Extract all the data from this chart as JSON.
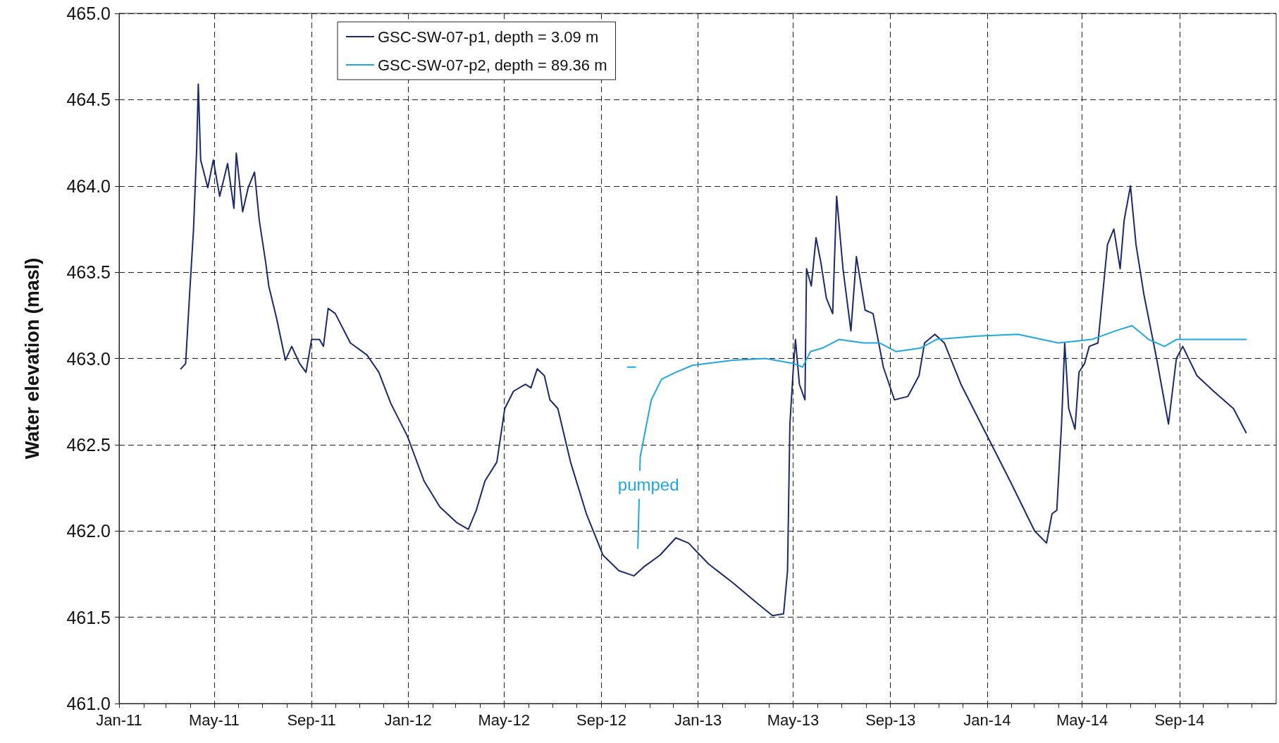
{
  "chart_data": {
    "type": "line",
    "ylabel": "Water elevation (masl)",
    "xlim": [
      "2011-01-01",
      "2015-01-01"
    ],
    "ylim": [
      461,
      465
    ],
    "yticks": [
      {
        "value": 461,
        "label": "461.0"
      },
      {
        "value": 461.5,
        "label": "461.5"
      },
      {
        "value": 462,
        "label": "462.0"
      },
      {
        "value": 462.5,
        "label": "462.5"
      },
      {
        "value": 463,
        "label": "463.0"
      },
      {
        "value": 463.5,
        "label": "463.5"
      },
      {
        "value": 464,
        "label": "464.0"
      },
      {
        "value": 464.5,
        "label": "464.5"
      },
      {
        "value": 465,
        "label": "465.0"
      }
    ],
    "xticks": [
      {
        "value": "2011-01",
        "label": "Jan-11"
      },
      {
        "value": "2011-02",
        "label": null
      },
      {
        "value": "2011-03",
        "label": null
      },
      {
        "value": "2011-04",
        "label": null
      },
      {
        "value": "2011-05",
        "label": "May-11"
      },
      {
        "value": "2011-06",
        "label": null
      },
      {
        "value": "2011-07",
        "label": null
      },
      {
        "value": "2011-08",
        "label": null
      },
      {
        "value": "2011-09",
        "label": "Sep-11"
      },
      {
        "value": "2011-10",
        "label": null
      },
      {
        "value": "2011-11",
        "label": null
      },
      {
        "value": "2011-12",
        "label": null
      },
      {
        "value": "2012-01",
        "label": "Jan-12"
      },
      {
        "value": "2012-02",
        "label": null
      },
      {
        "value": "2012-03",
        "label": null
      },
      {
        "value": "2012-04",
        "label": null
      },
      {
        "value": "2012-05",
        "label": "May-12"
      },
      {
        "value": "2012-06",
        "label": null
      },
      {
        "value": "2012-07",
        "label": null
      },
      {
        "value": "2012-08",
        "label": null
      },
      {
        "value": "2012-09",
        "label": "Sep-12"
      },
      {
        "value": "2012-10",
        "label": null
      },
      {
        "value": "2012-11",
        "label": null
      },
      {
        "value": "2012-12",
        "label": null
      },
      {
        "value": "2013-01",
        "label": "Jan-13"
      },
      {
        "value": "2013-02",
        "label": null
      },
      {
        "value": "2013-03",
        "label": null
      },
      {
        "value": "2013-04",
        "label": null
      },
      {
        "value": "2013-05",
        "label": "May-13"
      },
      {
        "value": "2013-06",
        "label": null
      },
      {
        "value": "2013-07",
        "label": null
      },
      {
        "value": "2013-08",
        "label": null
      },
      {
        "value": "2013-09",
        "label": "Sep-13"
      },
      {
        "value": "2013-10",
        "label": null
      },
      {
        "value": "2013-11",
        "label": null
      },
      {
        "value": "2013-12",
        "label": null
      },
      {
        "value": "2014-01",
        "label": "Jan-14"
      },
      {
        "value": "2014-02",
        "label": null
      },
      {
        "value": "2014-03",
        "label": null
      },
      {
        "value": "2014-04",
        "label": null
      },
      {
        "value": "2014-05",
        "label": "May-14"
      },
      {
        "value": "2014-06",
        "label": null
      },
      {
        "value": "2014-07",
        "label": null
      },
      {
        "value": "2014-08",
        "label": null
      },
      {
        "value": "2014-09",
        "label": "Sep-14"
      },
      {
        "value": "2014-10",
        "label": null
      },
      {
        "value": "2014-11",
        "label": null
      },
      {
        "value": "2014-12",
        "label": null
      }
    ],
    "grid": true,
    "legend": "top left",
    "marker": "none",
    "line_style": "solid",
    "annotations": [
      "pumped"
    ],
    "series": [
      {
        "name": "GSC-SW-07-p1, depth = 3.09 m",
        "color": "#1b2a6b",
        "x": [
          "2011-03-20",
          "2011-03-26",
          "2011-03-31",
          "2011-04-05",
          "2011-04-09",
          "2011-04-11",
          "2011-04-14",
          "2011-04-23",
          "2011-04-30",
          "2011-05-08",
          "2011-05-18",
          "2011-05-26",
          "2011-05-29",
          "2011-06-06",
          "2011-06-13",
          "2011-06-21",
          "2011-06-27",
          "2011-07-05",
          "2011-07-09",
          "2011-07-19",
          "2011-07-30",
          "2011-08-07",
          "2011-08-17",
          "2011-08-25",
          "2011-09-01",
          "2011-09-11",
          "2011-09-16",
          "2011-09-22",
          "2011-10-01",
          "2011-10-20",
          "2011-11-10",
          "2011-11-25",
          "2011-12-10",
          "2011-12-31",
          "2012-01-21",
          "2012-02-10",
          "2012-03-02",
          "2012-03-17",
          "2012-03-27",
          "2012-04-07",
          "2012-04-22",
          "2012-05-02",
          "2012-05-13",
          "2012-05-28",
          "2012-06-04",
          "2012-06-12",
          "2012-06-21",
          "2012-06-28",
          "2012-07-08",
          "2012-07-24",
          "2012-08-13",
          "2012-09-03",
          "2012-09-23",
          "2012-10-12",
          "2012-10-24",
          "2012-11-14",
          "2012-12-04",
          "2012-12-20",
          "2013-01-14",
          "2013-02-14",
          "2013-03-17",
          "2013-04-05",
          "2013-04-19",
          "2013-04-24",
          "2013-04-27",
          "2013-05-01",
          "2013-05-04",
          "2013-05-09",
          "2013-05-16",
          "2013-05-18",
          "2013-05-24",
          "2013-05-30",
          "2013-06-05",
          "2013-06-12",
          "2013-06-20",
          "2013-06-25",
          "2013-07-03",
          "2013-07-13",
          "2013-07-20",
          "2013-07-31",
          "2013-08-10",
          "2013-08-23",
          "2013-09-06",
          "2013-09-23",
          "2013-10-07",
          "2013-10-14",
          "2013-10-27",
          "2013-11-08",
          "2013-11-29",
          "2013-12-30",
          "2014-01-30",
          "2014-03-02",
          "2014-03-17",
          "2014-03-24",
          "2014-03-30",
          "2014-04-05",
          "2014-04-09",
          "2014-04-14",
          "2014-04-22",
          "2014-04-27",
          "2014-05-04",
          "2014-05-10",
          "2014-05-21",
          "2014-06-02",
          "2014-06-10",
          "2014-06-18",
          "2014-06-23",
          "2014-07-01",
          "2014-07-08",
          "2014-07-18",
          "2014-08-03",
          "2014-08-18",
          "2014-08-28",
          "2014-09-05",
          "2014-09-23",
          "2014-10-14",
          "2014-11-08",
          "2014-11-24"
        ],
        "values": [
          462.94,
          462.97,
          463.37,
          463.75,
          464.22,
          464.59,
          464.15,
          463.99,
          464.15,
          463.94,
          464.13,
          463.87,
          464.19,
          463.85,
          463.99,
          464.08,
          463.8,
          463.56,
          463.42,
          463.23,
          462.99,
          463.07,
          462.97,
          462.92,
          463.11,
          463.11,
          463.07,
          463.29,
          463.26,
          463.09,
          463.02,
          462.92,
          462.74,
          462.55,
          462.29,
          462.14,
          462.05,
          462.01,
          462.12,
          462.29,
          462.4,
          462.71,
          462.81,
          462.85,
          462.83,
          462.94,
          462.9,
          462.76,
          462.71,
          462.4,
          462.1,
          461.86,
          461.77,
          461.74,
          461.79,
          461.86,
          461.96,
          461.93,
          461.81,
          461.7,
          461.58,
          461.51,
          461.52,
          461.77,
          462.62,
          462.92,
          463.11,
          462.85,
          462.76,
          463.52,
          463.42,
          463.7,
          463.56,
          463.35,
          463.26,
          463.94,
          463.52,
          463.16,
          463.59,
          463.28,
          463.26,
          462.95,
          462.76,
          462.78,
          462.9,
          463.09,
          463.14,
          463.09,
          462.85,
          462.57,
          462.29,
          462,
          461.93,
          462.1,
          462.12,
          462.62,
          463.09,
          462.71,
          462.59,
          462.92,
          462.97,
          463.07,
          463.09,
          463.66,
          463.75,
          463.52,
          463.8,
          464,
          463.66,
          463.37,
          463,
          462.62,
          463,
          463.07,
          462.9,
          462.81,
          462.71,
          462.57
        ]
      },
      {
        "name": "GSC-SW-07-p2, depth = 89.36 m",
        "color": "#1ea7e0",
        "x": [
          "2012-10-04",
          "2012-10-14",
          "2012-10-15",
          "2012-10-17",
          "2012-10-20",
          "2012-11-03",
          "2012-11-16",
          "2012-12-04",
          "2012-12-25",
          "2013-02-14",
          "2013-03-27",
          "2013-05-02",
          "2013-05-13",
          "2013-05-23",
          "2013-06-07",
          "2013-06-28",
          "2013-07-29",
          "2013-08-18",
          "2013-09-08",
          "2013-10-09",
          "2013-10-29",
          "2013-12-20",
          "2014-02-09",
          "2014-04-01",
          "2014-05-13",
          "2014-06-12",
          "2014-07-03",
          "2014-07-24",
          "2014-08-13",
          "2014-08-28",
          "2014-10-03",
          "2014-11-24"
        ],
        "values": [
          462.95,
          462.95,
          null,
          461.9,
          462.43,
          462.76,
          462.88,
          462.92,
          462.96,
          462.99,
          463,
          462.97,
          462.95,
          463.04,
          463.06,
          463.11,
          463.09,
          463.09,
          463.04,
          463.06,
          463.11,
          463.13,
          463.14,
          463.09,
          463.11,
          463.16,
          463.19,
          463.11,
          463.07,
          463.11,
          463.11,
          463.11
        ]
      }
    ]
  }
}
